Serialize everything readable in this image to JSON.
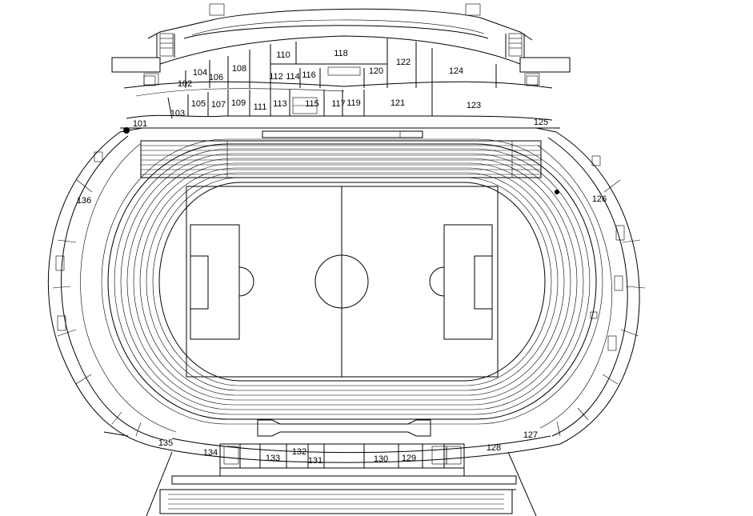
{
  "rooms": [
    {
      "id": "101",
      "label": "101"
    },
    {
      "id": "102",
      "label": "102"
    },
    {
      "id": "103",
      "label": "103"
    },
    {
      "id": "104",
      "label": "104"
    },
    {
      "id": "105",
      "label": "105"
    },
    {
      "id": "106",
      "label": "106"
    },
    {
      "id": "107",
      "label": "107"
    },
    {
      "id": "108",
      "label": "108"
    },
    {
      "id": "109",
      "label": "109"
    },
    {
      "id": "110",
      "label": "110"
    },
    {
      "id": "111",
      "label": "111"
    },
    {
      "id": "112",
      "label": "112"
    },
    {
      "id": "113",
      "label": "113"
    },
    {
      "id": "114",
      "label": "114"
    },
    {
      "id": "115",
      "label": "115"
    },
    {
      "id": "116",
      "label": "116"
    },
    {
      "id": "117",
      "label": "117"
    },
    {
      "id": "118",
      "label": "118"
    },
    {
      "id": "119",
      "label": "119"
    },
    {
      "id": "120",
      "label": "120"
    },
    {
      "id": "121",
      "label": "121"
    },
    {
      "id": "122",
      "label": "122"
    },
    {
      "id": "123",
      "label": "123"
    },
    {
      "id": "124",
      "label": "124"
    },
    {
      "id": "125",
      "label": "125"
    },
    {
      "id": "126",
      "label": "126"
    },
    {
      "id": "127",
      "label": "127"
    },
    {
      "id": "128",
      "label": "128"
    },
    {
      "id": "129",
      "label": "129"
    },
    {
      "id": "130",
      "label": "130"
    },
    {
      "id": "131",
      "label": "131"
    },
    {
      "id": "132",
      "label": "132"
    },
    {
      "id": "133",
      "label": "133"
    },
    {
      "id": "134",
      "label": "134"
    },
    {
      "id": "135",
      "label": "135"
    },
    {
      "id": "136",
      "label": "136"
    }
  ]
}
